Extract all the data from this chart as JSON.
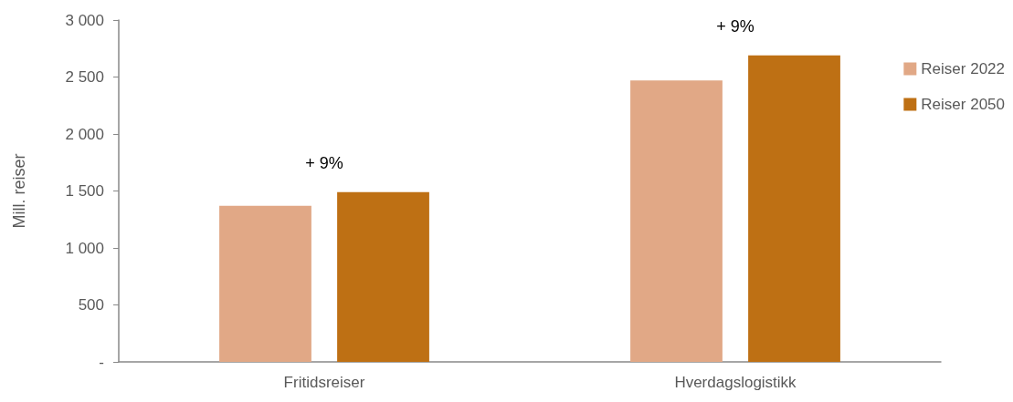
{
  "chart_data": {
    "type": "bar",
    "ylabel": "Mill. reiser",
    "categories": [
      "Fritidsreiser",
      "Hverdagslogistikk"
    ],
    "series": [
      {
        "name": "Reiser 2022",
        "color": "#e1a886",
        "values": [
          1370,
          2470
        ]
      },
      {
        "name": "Reiser 2050",
        "color": "#be7014",
        "values": [
          1490,
          2690
        ]
      }
    ],
    "ylim": [
      0,
      3000
    ],
    "yticks": [
      {
        "value": 0,
        "label": "-"
      },
      {
        "value": 500,
        "label": "500"
      },
      {
        "value": 1000,
        "label": "1 000"
      },
      {
        "value": 1500,
        "label": "1 500"
      },
      {
        "value": 2000,
        "label": "2 000"
      },
      {
        "value": 2500,
        "label": "2 500"
      },
      {
        "value": 3000,
        "label": "3 000"
      }
    ],
    "annotations": [
      "+ 9%",
      "+ 9%"
    ],
    "legend": "right",
    "grid": false
  }
}
